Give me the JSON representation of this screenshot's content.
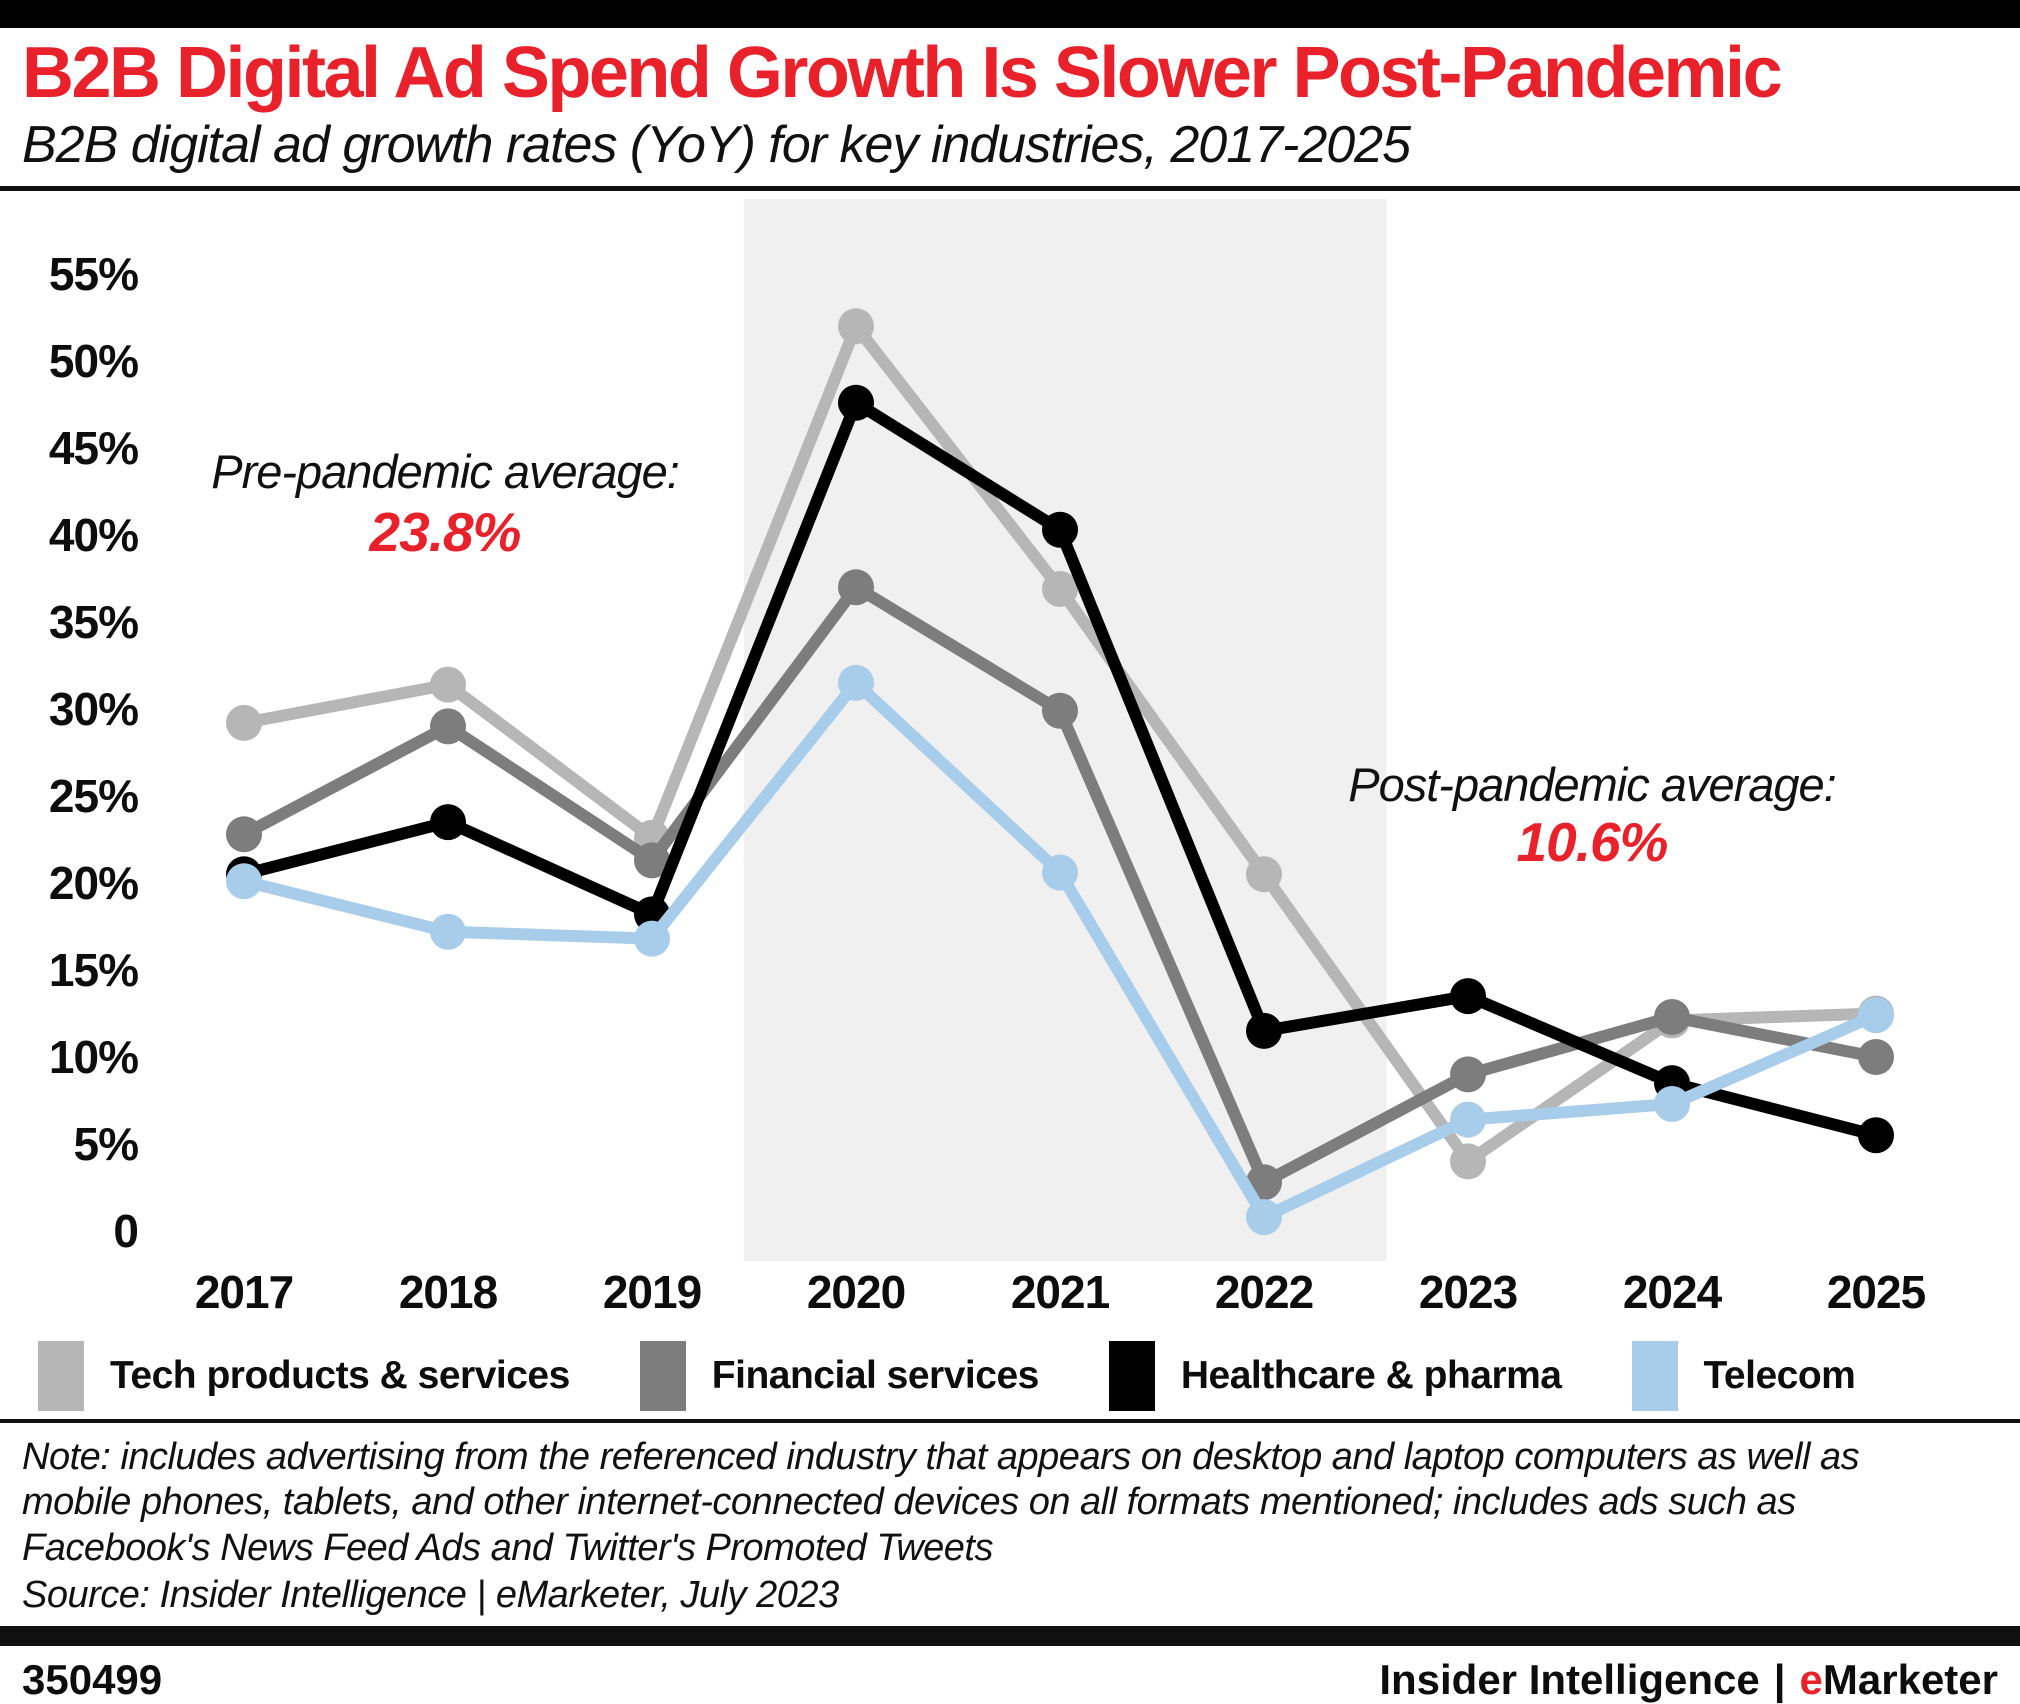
{
  "header": {
    "title": "B2B Digital Ad Spend Growth Is Slower Post-Pandemic",
    "subtitle": "B2B digital ad growth rates (YoY) for key industries, 2017-2025"
  },
  "chart_data": {
    "type": "line",
    "categories": [
      "2017",
      "2018",
      "2019",
      "2020",
      "2021",
      "2022",
      "2023",
      "2024",
      "2025"
    ],
    "series": [
      {
        "name": "Tech products & services",
        "color": "#b6b6b6",
        "values": [
          29.2,
          31.4,
          22.6,
          52.0,
          36.9,
          20.5,
          4.0,
          12.1,
          12.5
        ]
      },
      {
        "name": "Financial services",
        "color": "#7d7d7d",
        "values": [
          22.8,
          29.0,
          21.3,
          37.0,
          29.9,
          2.8,
          9.0,
          12.3,
          10.0
        ]
      },
      {
        "name": "Healthcare & pharma",
        "color": "#000000",
        "values": [
          20.5,
          23.5,
          18.2,
          47.6,
          40.3,
          11.5,
          13.5,
          8.5,
          5.5
        ]
      },
      {
        "name": "Telecom",
        "color": "#a8cdea",
        "values": [
          20.1,
          17.2,
          16.8,
          31.5,
          20.6,
          0.8,
          6.4,
          7.3,
          12.4
        ]
      }
    ],
    "ylim": [
      0,
      57
    ],
    "yticks": [
      0,
      5,
      10,
      15,
      20,
      25,
      30,
      35,
      40,
      45,
      50,
      55
    ],
    "ytick_suffix": "%",
    "grid": false,
    "legend_position": "bottom",
    "pandemic_band": {
      "covers_years": [
        "2020",
        "2021",
        "2022"
      ],
      "color": "#f0f0f0"
    },
    "annotations": [
      {
        "label": "Pre-pandemic average:",
        "value": "23.8%"
      },
      {
        "label": "Post-pandemic average:",
        "value": "10.6%"
      }
    ]
  },
  "note": {
    "text": "Note: includes advertising from the referenced industry that appears on desktop and laptop computers as well as mobile phones, tablets, and other internet-connected devices on all formats mentioned; includes ads such as Facebook's News Feed Ads and Twitter's Promoted Tweets",
    "source": "Source: Insider Intelligence | eMarketer, July 2023"
  },
  "footer": {
    "chart_id": "350499",
    "brand_left": "Insider Intelligence",
    "brand_sep": "|",
    "brand_e": "e",
    "brand_rest": "Marketer"
  },
  "colors": {
    "accent_red": "#e8212b",
    "band": "#f0f0f0"
  }
}
